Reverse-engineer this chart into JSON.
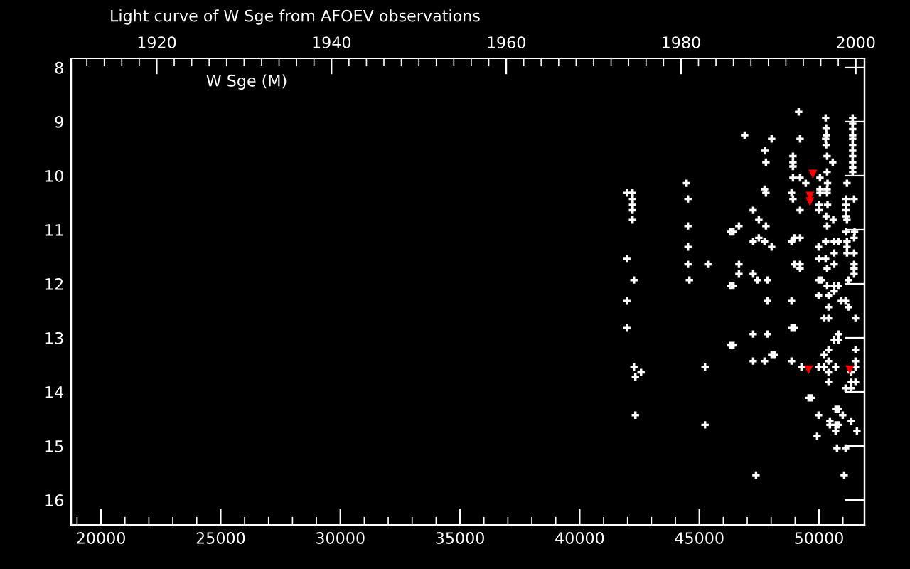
{
  "chart_data": {
    "type": "scatter",
    "title": "Light curve of W Sge from AFOEV observations",
    "annotations": [
      "W Sge (M)"
    ],
    "xlim": [
      18750,
      51900
    ],
    "xticks": [
      20000,
      25000,
      30000,
      35000,
      40000,
      45000,
      50000
    ],
    "x2lim": [
      1910.2,
      2001.0
    ],
    "x2ticks": [
      1920,
      1940,
      1960,
      1980,
      2000
    ],
    "ylim": [
      16.46,
      7.83
    ],
    "yticks": [
      8,
      9,
      10,
      11,
      12,
      13,
      14,
      15,
      16
    ],
    "grid": false,
    "legend": false,
    "series": [
      {
        "color": "#ffffff",
        "marker": "cross",
        "x": [
          41971,
          42208,
          42208,
          42208,
          42208,
          42208,
          41971,
          42268,
          41971,
          41971,
          42268,
          42565,
          42327,
          42327,
          44465,
          44525,
          44525,
          44525,
          44525,
          45356,
          44584,
          45238,
          45238,
          46426,
          46426,
          46426,
          49149,
          46891,
          50277,
          50297,
          50317,
          50277,
          50297,
          48020,
          49208,
          47743,
          47782,
          48911,
          48911,
          48911,
          50337,
          50574,
          50337,
          48911,
          49208,
          49446,
          50040,
          50356,
          50040,
          50040,
          50337,
          50337,
          51168,
          47723,
          47782,
          48851,
          48911,
          50000,
          50356,
          51129,
          51129,
          51129,
          51129,
          51465,
          51168,
          49208,
          50000,
          50297,
          50594,
          47248,
          47485,
          46654,
          47782,
          46297,
          50337,
          51129,
          51485,
          51465,
          47248,
          47485,
          47723,
          48020,
          48851,
          48970,
          49208,
          49980,
          50277,
          50634,
          50812,
          51168,
          51168,
          51168,
          51465,
          50634,
          50000,
          50277,
          49208,
          49208,
          48970,
          50634,
          50337,
          51465,
          51465,
          51465,
          46654,
          47248,
          46654,
          47426,
          47842,
          49980,
          50099,
          50337,
          50634,
          50812,
          51228,
          50634,
          46297,
          49980,
          50396,
          47842,
          48851,
          50931,
          51109,
          50396,
          51228,
          50218,
          50396,
          51525,
          48851,
          48970,
          50812,
          47248,
          47842,
          50634,
          50812,
          46297,
          50396,
          51525,
          50218,
          48020,
          48139,
          50396,
          51525,
          47248,
          47723,
          48851,
          49267,
          49980,
          50218,
          50693,
          51525,
          50396,
          51347,
          51347,
          51525,
          50396,
          51109,
          51347,
          49564,
          49683,
          50693,
          50812,
          50990,
          49980,
          50455,
          50455,
          50693,
          50812,
          51347,
          50693,
          51584,
          49921,
          50752,
          51109,
          47367,
          51050,
          51406,
          51406,
          51406,
          51406,
          51406,
          51406,
          51406,
          51406,
          51406,
          51406,
          51406
        ],
        "values": [
          10.32,
          10.32,
          10.43,
          10.54,
          10.64,
          10.82,
          11.54,
          11.93,
          12.32,
          12.82,
          13.54,
          13.64,
          13.72,
          14.43,
          10.14,
          10.43,
          10.93,
          11.32,
          11.64,
          11.64,
          11.93,
          13.54,
          14.61,
          11.04,
          12.04,
          13.14,
          8.82,
          9.25,
          8.93,
          9.13,
          9.25,
          9.32,
          9.43,
          9.32,
          9.32,
          9.54,
          9.75,
          9.64,
          9.75,
          9.83,
          9.64,
          9.75,
          9.93,
          10.04,
          10.04,
          10.14,
          10.04,
          10.14,
          10.25,
          10.32,
          10.25,
          10.32,
          10.14,
          10.25,
          10.32,
          10.32,
          10.43,
          10.54,
          10.54,
          10.43,
          10.54,
          10.64,
          10.75,
          10.43,
          10.82,
          10.64,
          10.64,
          10.75,
          10.82,
          10.64,
          10.82,
          10.93,
          10.93,
          11.04,
          10.93,
          11.04,
          11.04,
          11.15,
          11.22,
          11.15,
          11.22,
          11.32,
          11.22,
          11.15,
          11.15,
          11.32,
          11.22,
          11.22,
          11.22,
          11.22,
          11.32,
          11.43,
          11.43,
          11.43,
          11.54,
          11.54,
          11.64,
          11.72,
          11.64,
          11.64,
          11.72,
          11.64,
          11.72,
          11.82,
          11.64,
          11.82,
          11.82,
          11.93,
          11.93,
          11.93,
          11.93,
          12.04,
          12.04,
          12.04,
          11.93,
          12.14,
          12.04,
          12.22,
          12.22,
          12.32,
          12.32,
          12.32,
          12.32,
          12.43,
          12.43,
          12.64,
          12.64,
          12.64,
          12.82,
          12.82,
          12.93,
          12.93,
          12.93,
          13.04,
          13.04,
          13.14,
          13.22,
          13.22,
          13.32,
          13.32,
          13.32,
          13.43,
          13.43,
          13.43,
          13.43,
          13.43,
          13.54,
          13.54,
          13.54,
          13.54,
          13.54,
          13.64,
          13.64,
          13.82,
          13.82,
          13.82,
          13.93,
          13.93,
          14.11,
          14.11,
          14.32,
          14.32,
          14.43,
          14.43,
          14.54,
          14.61,
          14.61,
          14.61,
          14.54,
          14.72,
          14.72,
          14.82,
          15.04,
          15.04,
          15.54,
          15.54,
          8.93,
          9.04,
          9.14,
          9.25,
          9.32,
          9.43,
          9.54,
          9.64,
          9.75,
          9.85,
          9.93
        ]
      },
      {
        "color": "#ff0000",
        "marker": "triangle",
        "x": [
          49743,
          49624,
          49624,
          49564,
          51287
        ],
        "values": [
          9.97,
          10.38,
          10.48,
          13.59,
          13.59
        ]
      }
    ]
  }
}
